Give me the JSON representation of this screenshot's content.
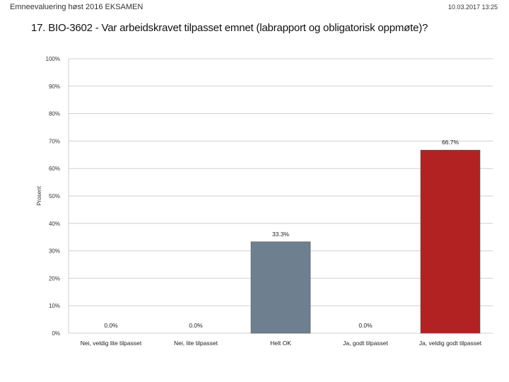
{
  "header": {
    "left": "Emneevaluering høst 2016 EKSAMEN",
    "right": "10.03.2017 13:25"
  },
  "chart_data": {
    "type": "bar",
    "title": "17. BIO-3602 - Var arbeidskravet tilpasset emnet (labrapport og obligatorisk oppmøte)?",
    "ylabel": "Prosent",
    "xlabel": "",
    "ylim": [
      0,
      100
    ],
    "yticks": [
      0,
      10,
      20,
      30,
      40,
      50,
      60,
      70,
      80,
      90,
      100
    ],
    "ytick_labels": [
      "0%",
      "10%",
      "20%",
      "30%",
      "40%",
      "50%",
      "60%",
      "70%",
      "80%",
      "90%",
      "100%"
    ],
    "categories": [
      "Nei, veldig lite tilpasset",
      "Nei, lite tilpasset",
      "Helt OK",
      "Ja, godt tilpasset",
      "Ja, veldig godt tilpasset"
    ],
    "values": [
      0.0,
      0.0,
      33.3,
      0.0,
      66.7
    ],
    "value_labels": [
      "0.0%",
      "0.0%",
      "33.3%",
      "0.0%",
      "66.7%"
    ],
    "colors": [
      "#6e8090",
      "#6e8090",
      "#6e8090",
      "#6e8090",
      "#b22222"
    ],
    "grid": true
  }
}
